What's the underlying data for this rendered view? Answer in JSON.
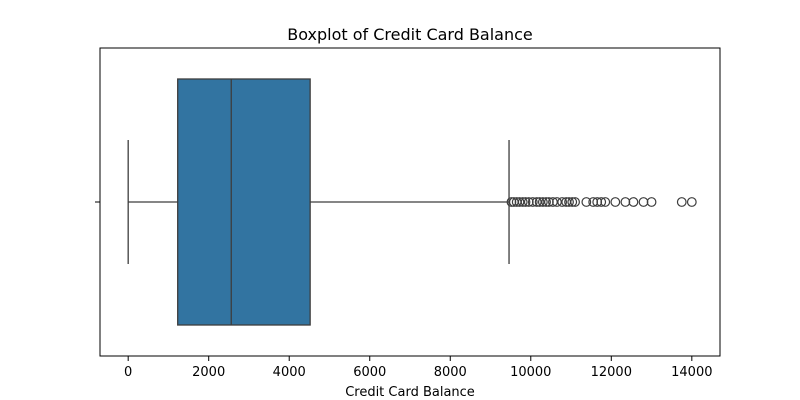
{
  "chart_data": {
    "type": "boxplot",
    "title": "Boxplot of Credit Card Balance",
    "xlabel": "Credit Card Balance",
    "ylabel": "",
    "orientation": "horizontal",
    "xlim": [
      -700,
      14700
    ],
    "xticks": [
      0,
      2000,
      4000,
      6000,
      8000,
      10000,
      12000,
      14000
    ],
    "xtick_labels": [
      "0",
      "2000",
      "4000",
      "6000",
      "8000",
      "10000",
      "12000",
      "14000"
    ],
    "grid": false,
    "box": {
      "whisker_low": 0,
      "q1": 1230,
      "median": 2560,
      "q3": 4520,
      "whisker_high": 9460
    },
    "outliers": [
      9520,
      9580,
      9650,
      9720,
      9800,
      9870,
      9950,
      10050,
      10150,
      10220,
      10300,
      10380,
      10450,
      10550,
      10650,
      10780,
      10880,
      10950,
      11030,
      11100,
      11380,
      11550,
      11650,
      11750,
      11850,
      12100,
      12350,
      12550,
      12800,
      13000,
      13750,
      14000
    ],
    "colors": {
      "box_fill": "#3274a1",
      "line": "#3d3d3d",
      "outlier_edge": "#3d3d3d"
    }
  }
}
